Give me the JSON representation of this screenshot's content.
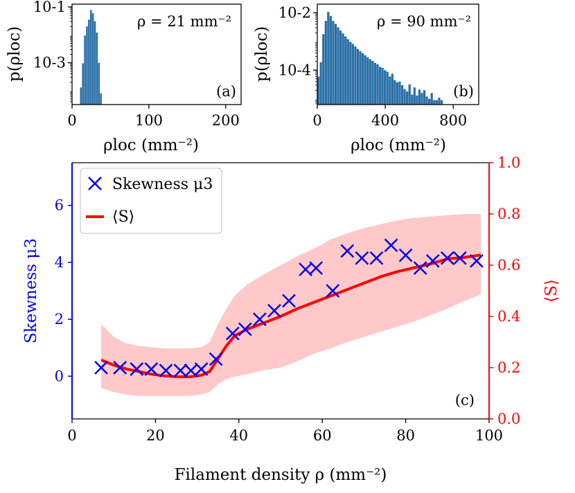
{
  "colors": {
    "hist_bar": "#2a6fa6",
    "skewness": "#0000ee",
    "order": "#ff0000",
    "band": "#ffc9c9",
    "axis": "#000000"
  },
  "chart_data": [
    {
      "type": "bar",
      "panel_label": "(a)",
      "annotation": "ρ = 21 mm⁻²",
      "xlabel": "ρloc (mm⁻²)",
      "ylabel": "p(ρloc)",
      "xlim": [
        0,
        220
      ],
      "ylim_log10": [
        -4.5,
        -0.9
      ],
      "yscale": "log",
      "xtick_labels": [
        "0",
        "100",
        "200"
      ],
      "ytick_labels": [
        "10-1",
        "10-3"
      ],
      "bin_width": 2.6,
      "bin_starts": [
        10.4,
        13.0,
        15.6,
        18.2,
        20.8,
        23.4,
        26.0,
        28.6,
        31.2,
        33.8,
        36.4
      ],
      "values": [
        0.00013,
        0.00095,
        0.0095,
        0.02,
        0.035,
        0.078,
        0.06,
        0.031,
        0.012,
        0.001,
        8e-05
      ]
    },
    {
      "type": "bar",
      "panel_label": "(b)",
      "annotation": "ρ = 90 mm⁻²",
      "xlabel": "ρloc (mm⁻²)",
      "ylabel": "p(ρloc)",
      "xlim": [
        0,
        950
      ],
      "ylim_log10": [
        -5.2,
        -1.7
      ],
      "yscale": "log",
      "xtick_labels": [
        "0",
        "400",
        "800"
      ],
      "ytick_labels": [
        "10-2",
        "10-4"
      ],
      "bin_width": 14.5,
      "bin_starts": [
        0,
        14.5,
        29,
        43.5,
        58,
        72.5,
        87,
        101.5,
        116,
        130.5,
        145,
        159.5,
        174,
        188.5,
        203,
        217.5,
        232,
        246.5,
        261,
        275.5,
        290,
        304.5,
        319,
        333.5,
        348,
        362.5,
        377,
        391.5,
        406,
        420.5,
        435,
        449.5,
        464,
        478.5,
        493,
        507.5,
        522,
        536.5,
        551,
        565.5,
        580,
        594.5,
        609,
        623.5,
        638,
        652.5,
        667,
        681.5,
        696,
        710.5,
        725
      ],
      "values": [
        6e-05,
        0.00019,
        0.0018,
        0.0052,
        0.0107,
        0.0077,
        0.0052,
        0.0041,
        0.0031,
        0.0024,
        0.0019,
        0.0015,
        0.0012,
        0.00097,
        0.00082,
        0.00067,
        0.00055,
        0.00046,
        0.00039,
        0.00033,
        0.00028,
        0.00024,
        0.00021,
        0.00018,
        0.00016,
        0.00013,
        0.00012,
        0.0001,
        8.8e-05,
        6e-05,
        7.5e-05,
        4.5e-05,
        3.8e-05,
        4e-05,
        3e-05,
        2.2e-05,
        1.8e-05,
        3.2e-05,
        1.4e-05,
        2.5e-05,
        1.3e-05,
        2.1e-05,
        1.6e-05,
        2e-05,
        1.2e-05,
        1e-05,
        1.6e-05,
        9e-06,
        9e-06,
        1.1e-05,
        9e-06
      ]
    },
    {
      "type": "line",
      "panel_label": "(c)",
      "xlabel": "Filament density ρ (mm⁻²)",
      "ylabel_left": "Skewness μ3",
      "ylabel_right": "⟨S⟩",
      "xlim": [
        0,
        100
      ],
      "ylim_left": [
        -1.5,
        7.5
      ],
      "ylim_right": [
        0.0,
        1.0
      ],
      "xtick_labels": [
        "0",
        "20",
        "40",
        "60",
        "80",
        "100"
      ],
      "ytick_labels_left": [
        "0",
        "2",
        "4",
        "6"
      ],
      "ytick_labels_right": [
        "0.0",
        "0.2",
        "0.4",
        "0.6",
        "0.8",
        "1.0"
      ],
      "legend_position": "top-left",
      "legend": [
        "Skewness μ3",
        "⟨S⟩"
      ],
      "series": [
        {
          "name": "Skewness μ3",
          "axis": "left",
          "marker": "x",
          "x": [
            7,
            11.5,
            15.5,
            19,
            22.5,
            26,
            28.5,
            31,
            34.5,
            38.5,
            41.5,
            45,
            48.5,
            52,
            56,
            58.5,
            62.5,
            66,
            69.5,
            73,
            76.5,
            80,
            83.5,
            86.5,
            90,
            93,
            97
          ],
          "values": [
            0.3,
            0.3,
            0.25,
            0.25,
            0.2,
            0.2,
            0.2,
            0.25,
            0.6,
            1.5,
            1.65,
            2.0,
            2.3,
            2.65,
            3.75,
            3.8,
            3.0,
            4.4,
            4.15,
            4.15,
            4.6,
            4.25,
            3.8,
            4.05,
            4.15,
            4.15,
            4.05
          ]
        },
        {
          "name": "⟨S⟩",
          "axis": "right",
          "x": [
            7,
            10,
            13,
            16,
            19,
            22,
            25,
            28,
            31,
            33,
            35,
            37,
            39,
            42,
            46,
            50,
            54,
            58,
            62,
            66,
            70,
            74,
            78,
            82,
            86,
            90,
            94,
            98
          ],
          "values": [
            0.23,
            0.21,
            0.195,
            0.185,
            0.175,
            0.168,
            0.165,
            0.164,
            0.17,
            0.185,
            0.235,
            0.285,
            0.325,
            0.35,
            0.375,
            0.4,
            0.43,
            0.455,
            0.48,
            0.505,
            0.53,
            0.555,
            0.575,
            0.59,
            0.605,
            0.625,
            0.63,
            0.64
          ]
        },
        {
          "name": "⟨S⟩ spread",
          "axis": "right",
          "type": "area",
          "x": [
            7,
            10,
            13,
            16,
            19,
            22,
            25,
            28,
            31,
            33,
            35,
            37,
            39,
            42,
            46,
            50,
            54,
            58,
            62,
            66,
            70,
            74,
            78,
            82,
            86,
            90,
            94,
            98
          ],
          "upper": [
            0.37,
            0.32,
            0.295,
            0.285,
            0.28,
            0.275,
            0.275,
            0.275,
            0.28,
            0.3,
            0.37,
            0.43,
            0.48,
            0.525,
            0.565,
            0.6,
            0.635,
            0.665,
            0.7,
            0.725,
            0.745,
            0.76,
            0.775,
            0.785,
            0.79,
            0.795,
            0.8,
            0.8
          ],
          "lower": [
            0.12,
            0.105,
            0.095,
            0.09,
            0.09,
            0.09,
            0.09,
            0.09,
            0.095,
            0.105,
            0.135,
            0.155,
            0.165,
            0.175,
            0.19,
            0.2,
            0.225,
            0.255,
            0.275,
            0.3,
            0.32,
            0.34,
            0.36,
            0.38,
            0.405,
            0.43,
            0.46,
            0.485
          ]
        }
      ]
    }
  ]
}
